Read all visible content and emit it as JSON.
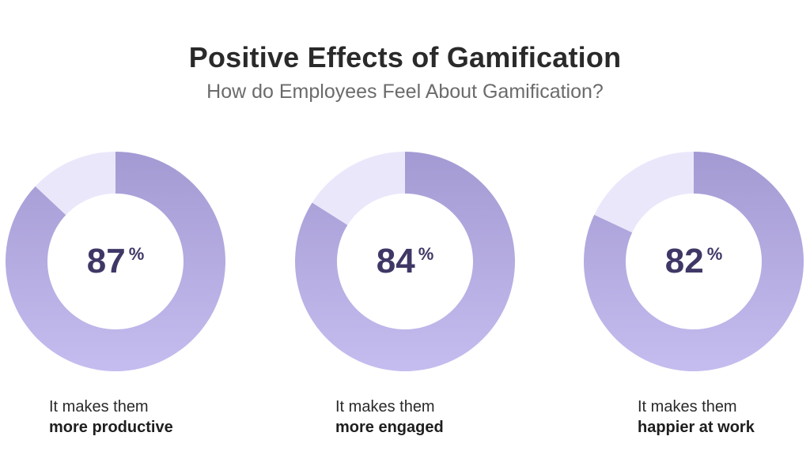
{
  "header": {
    "title": "Positive Effects of Gamification",
    "subtitle": "How do Employees Feel About Gamification?"
  },
  "colors": {
    "filled_top": "#a49ad3",
    "filled_bottom": "#c5bdef",
    "remainder": "#ebe7fb",
    "text": "#3f3866"
  },
  "chart_data": [
    {
      "type": "pie",
      "variant": "donut",
      "value": 87,
      "unit": "%",
      "caption_line1": "It makes them",
      "caption_line2": "more productive"
    },
    {
      "type": "pie",
      "variant": "donut",
      "value": 84,
      "unit": "%",
      "caption_line1": "It makes them",
      "caption_line2": "more engaged"
    },
    {
      "type": "pie",
      "variant": "donut",
      "value": 82,
      "unit": "%",
      "caption_line1": "It makes them",
      "caption_line2": "happier at work"
    }
  ]
}
